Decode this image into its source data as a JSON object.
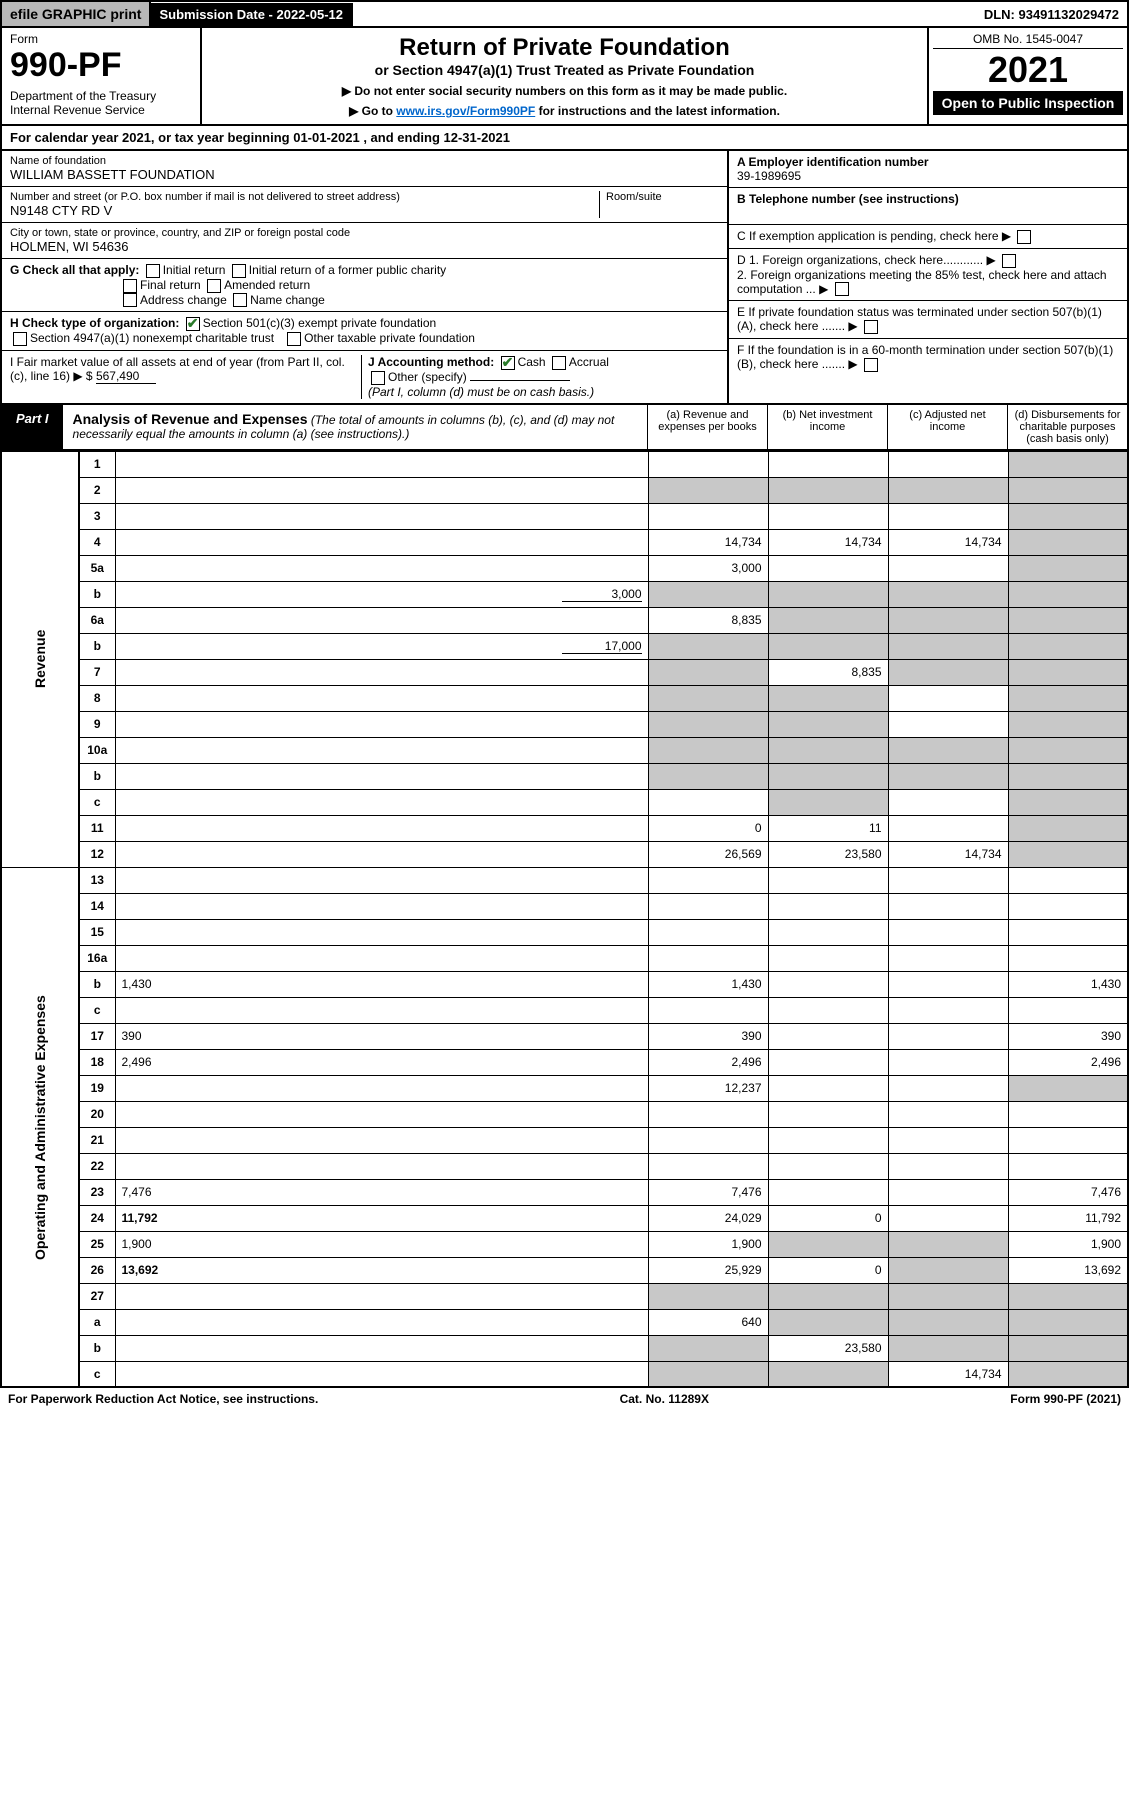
{
  "topbar": {
    "efile": "efile GRAPHIC print",
    "submission": "Submission Date - 2022-05-12",
    "dln": "DLN: 93491132029472"
  },
  "header": {
    "form_label": "Form",
    "form_number": "990-PF",
    "dept": "Department of the Treasury\nInternal Revenue Service",
    "title": "Return of Private Foundation",
    "sub1": "or Section 4947(a)(1) Trust Treated as Private Foundation",
    "sub2a": "▶ Do not enter social security numbers on this form as it may be made public.",
    "sub2b": "▶ Go to ",
    "link": "www.irs.gov/Form990PF",
    "sub2c": " for instructions and the latest information.",
    "omb": "OMB No. 1545-0047",
    "year": "2021",
    "inspect": "Open to Public Inspection"
  },
  "cal": "For calendar year 2021, or tax year beginning 01-01-2021               , and ending 12-31-2021",
  "id": {
    "name_lbl": "Name of foundation",
    "name": "WILLIAM BASSETT FOUNDATION",
    "addr_lbl": "Number and street (or P.O. box number if mail is not delivered to street address)",
    "addr": "N9148 CTY RD V",
    "room_lbl": "Room/suite",
    "city_lbl": "City or town, state or province, country, and ZIP or foreign postal code",
    "city": "HOLMEN, WI  54636",
    "ein_lbl": "A Employer identification number",
    "ein": "39-1989695",
    "tel_lbl": "B Telephone number (see instructions)",
    "c": "C If exemption application is pending, check here",
    "d1": "D 1. Foreign organizations, check here............",
    "d2": "   2. Foreign organizations meeting the 85% test, check here and attach computation ...",
    "e": "E  If private foundation status was terminated under section 507(b)(1)(A), check here .......",
    "f": "F  If the foundation is in a 60-month termination under section 507(b)(1)(B), check here .......",
    "g": "G Check all that apply:",
    "g_opts": [
      "Initial return",
      "Initial return of a former public charity",
      "Final return",
      "Amended return",
      "Address change",
      "Name change"
    ],
    "h": "H Check type of organization:",
    "h1": "Section 501(c)(3) exempt private foundation",
    "h2": "Section 4947(a)(1) nonexempt charitable trust",
    "h3": "Other taxable private foundation",
    "i": "I Fair market value of all assets at end of year (from Part II, col. (c), line 16) ▶ $",
    "i_val": "567,490",
    "j": "J Accounting method:",
    "j_cash": "Cash",
    "j_accrual": "Accrual",
    "j_other": "Other (specify)",
    "j_note": "(Part I, column (d) must be on cash basis.)"
  },
  "part1": {
    "label": "Part I",
    "title": "Analysis of Revenue and Expenses",
    "title_note": "(The total of amounts in columns (b), (c), and (d) may not necessarily equal the amounts in column (a) (see instructions).)",
    "col_a": "(a) Revenue and expenses per books",
    "col_b": "(b) Net investment income",
    "col_c": "(c) Adjusted net income",
    "col_d": "(d) Disbursements for charitable purposes (cash basis only)",
    "side_rev": "Revenue",
    "side_exp": "Operating and Administrative Expenses"
  },
  "rows": [
    {
      "n": "1",
      "d": "",
      "a": "",
      "b": "",
      "c": "",
      "shade": [
        "d"
      ]
    },
    {
      "n": "2",
      "d": "",
      "a": "",
      "b": "",
      "c": "",
      "shade": [
        "a",
        "b",
        "c",
        "d"
      ],
      "nob": true
    },
    {
      "n": "3",
      "d": "",
      "a": "",
      "b": "",
      "c": "",
      "shade": [
        "d"
      ]
    },
    {
      "n": "4",
      "d": "",
      "a": "14,734",
      "b": "14,734",
      "c": "14,734",
      "shade": [
        "d"
      ]
    },
    {
      "n": "5a",
      "d": "",
      "a": "3,000",
      "b": "",
      "c": "",
      "shade": [
        "d"
      ]
    },
    {
      "n": "b",
      "d": "",
      "inline": "3,000",
      "a": "",
      "b": "",
      "c": "",
      "shade": [
        "a",
        "b",
        "c",
        "d"
      ]
    },
    {
      "n": "6a",
      "d": "",
      "a": "8,835",
      "b": "",
      "c": "",
      "shade": [
        "b",
        "c",
        "d"
      ]
    },
    {
      "n": "b",
      "d": "",
      "inline": "17,000",
      "a": "",
      "b": "",
      "c": "",
      "shade": [
        "a",
        "b",
        "c",
        "d"
      ]
    },
    {
      "n": "7",
      "d": "",
      "a": "",
      "b": "8,835",
      "c": "",
      "shade": [
        "a",
        "c",
        "d"
      ]
    },
    {
      "n": "8",
      "d": "",
      "a": "",
      "b": "",
      "c": "",
      "shade": [
        "a",
        "b",
        "d"
      ]
    },
    {
      "n": "9",
      "d": "",
      "a": "",
      "b": "",
      "c": "",
      "shade": [
        "a",
        "b",
        "d"
      ]
    },
    {
      "n": "10a",
      "d": "",
      "a": "",
      "b": "",
      "c": "",
      "shade": [
        "a",
        "b",
        "c",
        "d"
      ],
      "box": true
    },
    {
      "n": "b",
      "d": "",
      "a": "",
      "b": "",
      "c": "",
      "shade": [
        "a",
        "b",
        "c",
        "d"
      ],
      "box": true
    },
    {
      "n": "c",
      "d": "",
      "a": "",
      "b": "",
      "c": "",
      "shade": [
        "b",
        "d"
      ]
    },
    {
      "n": "11",
      "d": "",
      "a": "0",
      "b": "11",
      "c": "",
      "shade": [
        "d"
      ]
    },
    {
      "n": "12",
      "d": "",
      "a": "26,569",
      "b": "23,580",
      "c": "14,734",
      "shade": [
        "d"
      ],
      "bold": true
    },
    {
      "n": "13",
      "d": "",
      "a": "",
      "b": "",
      "c": ""
    },
    {
      "n": "14",
      "d": "",
      "a": "",
      "b": "",
      "c": ""
    },
    {
      "n": "15",
      "d": "",
      "a": "",
      "b": "",
      "c": ""
    },
    {
      "n": "16a",
      "d": "",
      "a": "",
      "b": "",
      "c": ""
    },
    {
      "n": "b",
      "d": "1,430",
      "a": "1,430",
      "b": "",
      "c": ""
    },
    {
      "n": "c",
      "d": "",
      "a": "",
      "b": "",
      "c": ""
    },
    {
      "n": "17",
      "d": "390",
      "a": "390",
      "b": "",
      "c": ""
    },
    {
      "n": "18",
      "d": "2,496",
      "a": "2,496",
      "b": "",
      "c": ""
    },
    {
      "n": "19",
      "d": "",
      "a": "12,237",
      "b": "",
      "c": "",
      "shade": [
        "d"
      ]
    },
    {
      "n": "20",
      "d": "",
      "a": "",
      "b": "",
      "c": ""
    },
    {
      "n": "21",
      "d": "",
      "a": "",
      "b": "",
      "c": ""
    },
    {
      "n": "22",
      "d": "",
      "a": "",
      "b": "",
      "c": ""
    },
    {
      "n": "23",
      "d": "7,476",
      "a": "7,476",
      "b": "",
      "c": ""
    },
    {
      "n": "24",
      "d": "11,792",
      "a": "24,029",
      "b": "0",
      "c": "",
      "bold": true
    },
    {
      "n": "25",
      "d": "1,900",
      "a": "1,900",
      "b": "",
      "c": "",
      "shade": [
        "b",
        "c"
      ]
    },
    {
      "n": "26",
      "d": "13,692",
      "a": "25,929",
      "b": "0",
      "c": "",
      "bold": true,
      "shade": [
        "c"
      ]
    },
    {
      "n": "27",
      "d": "",
      "a": "",
      "b": "",
      "c": "",
      "shade": [
        "a",
        "b",
        "c",
        "d"
      ]
    },
    {
      "n": "a",
      "d": "",
      "a": "640",
      "b": "",
      "c": "",
      "shade": [
        "b",
        "c",
        "d"
      ],
      "bold": true
    },
    {
      "n": "b",
      "d": "",
      "a": "",
      "b": "23,580",
      "c": "",
      "shade": [
        "a",
        "c",
        "d"
      ],
      "bold": true
    },
    {
      "n": "c",
      "d": "",
      "a": "",
      "b": "",
      "c": "14,734",
      "shade": [
        "a",
        "b",
        "d"
      ],
      "bold": true
    }
  ],
  "footer": {
    "left": "For Paperwork Reduction Act Notice, see instructions.",
    "mid": "Cat. No. 11289X",
    "right": "Form 990-PF (2021)"
  },
  "colors": {
    "shade": "#c8c8c8",
    "link": "#0066cc",
    "check": "#2a7a2a"
  }
}
